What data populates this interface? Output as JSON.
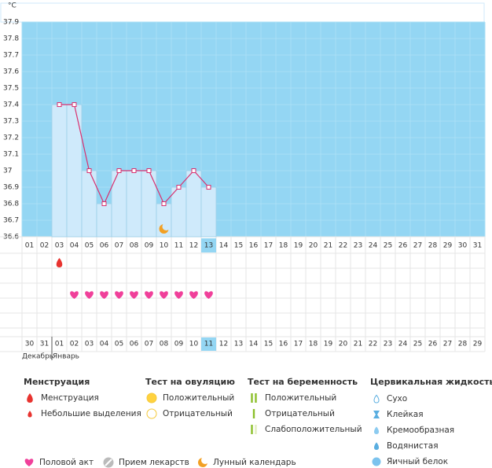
{
  "chart_data": {
    "type": "line",
    "y_unit": "°C",
    "categories": [
      "01",
      "02",
      "03",
      "04",
      "05",
      "06",
      "07",
      "08",
      "09",
      "10",
      "11",
      "12",
      "13",
      "14",
      "15",
      "16",
      "17",
      "18",
      "19",
      "20",
      "21",
      "22",
      "23",
      "24",
      "25",
      "26",
      "27",
      "28",
      "29",
      "30",
      "31"
    ],
    "values": [
      null,
      null,
      37.4,
      37.4,
      37,
      36.8,
      37,
      37,
      37,
      36.8,
      36.9,
      37,
      36.9,
      null,
      null,
      null,
      null,
      null,
      null,
      null,
      null,
      null,
      null,
      null,
      null,
      null,
      null,
      null,
      null,
      null,
      null
    ],
    "ylim": [
      36.6,
      37.9
    ],
    "yticks": [
      36.6,
      36.7,
      36.8,
      36.9,
      37,
      37.1,
      37.2,
      37.3,
      37.4,
      37.5,
      37.6,
      37.7,
      37.8,
      37.9
    ],
    "line_color": "#d9306f",
    "bar_color": "#cfeafb",
    "background": "#94d6f3",
    "dates": [
      "30",
      "31",
      "01",
      "02",
      "03",
      "04",
      "05",
      "06",
      "07",
      "08",
      "09",
      "10",
      "11",
      "12",
      "13",
      "14",
      "15",
      "16",
      "17",
      "18",
      "19",
      "20",
      "21",
      "22",
      "23",
      "24",
      "25",
      "26",
      "27",
      "28",
      "29"
    ],
    "months": [
      "Декабрь",
      "Январь"
    ]
  },
  "legend": {
    "sections": [
      {
        "title": "Менструация",
        "items": [
          "Менструация",
          "Небольшие выделения"
        ]
      },
      {
        "title": "Тест на овуляцию",
        "items": [
          "Положительный",
          "Отрицательный"
        ]
      },
      {
        "title": "Тест на беременность",
        "items": [
          "Положительный",
          "Отрицательный",
          "Слабоположительный"
        ]
      },
      {
        "title": "Цервикальная жидкость",
        "items": [
          "Сухо",
          "Клейкая",
          "Кремообразная",
          "Водянистая",
          "Яичный белок"
        ]
      }
    ],
    "other": [
      "Половой акт",
      "Прием лекарств",
      "Лунный календарь"
    ]
  }
}
